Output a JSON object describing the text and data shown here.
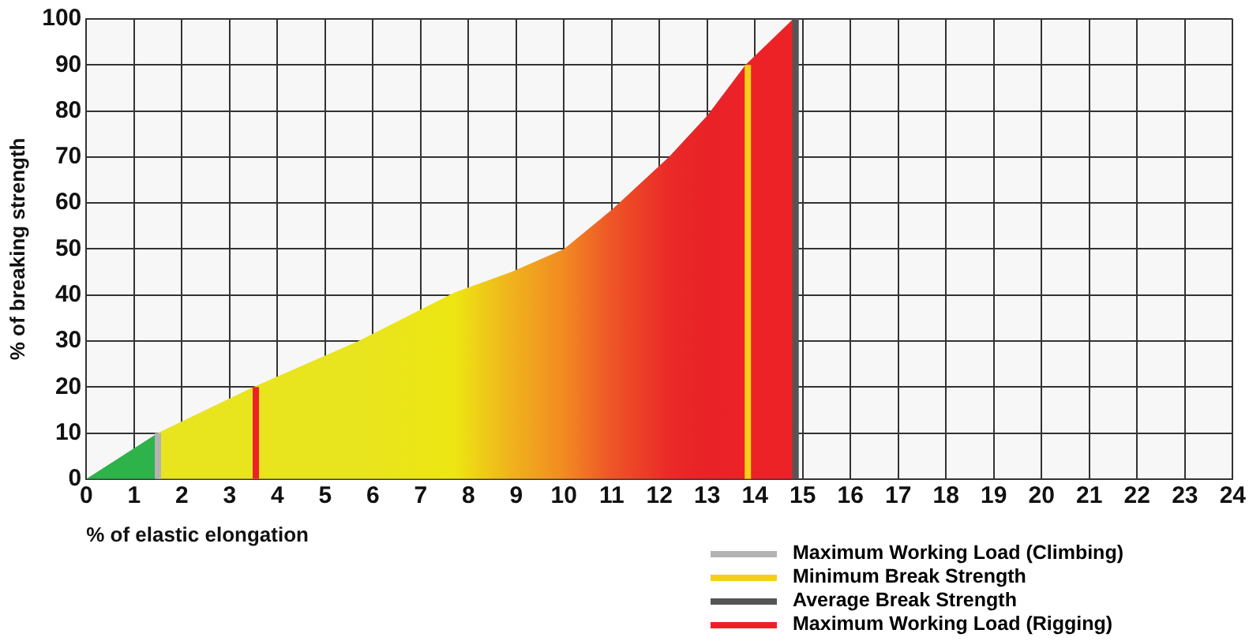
{
  "chart_data": {
    "type": "area",
    "xlabel": "% of elastic elongation",
    "ylabel": "% of breaking strength",
    "xlim": [
      0,
      24
    ],
    "xticks": [
      0,
      1,
      2,
      3,
      4,
      5,
      6,
      7,
      8,
      9,
      10,
      11,
      12,
      13,
      14,
      15,
      16,
      17,
      18,
      19,
      20,
      21,
      22,
      23,
      24
    ],
    "ylim": [
      0,
      100
    ],
    "yticks": [
      0,
      10,
      20,
      30,
      40,
      50,
      60,
      70,
      80,
      90,
      100
    ],
    "grid": true,
    "legend": "bottom right",
    "series": [
      {
        "x": [
          0,
          1.5,
          1.5,
          3.5,
          5.7,
          7.7,
          8.9,
          10,
          11,
          12.2,
          13,
          13.8,
          14.8
        ],
        "values": [
          0,
          10,
          10,
          20,
          30,
          40.5,
          45,
          50,
          58.5,
          70,
          79,
          90,
          100
        ],
        "colors": [
          "#2db34a",
          "#2db34a",
          "#e8e41e",
          "#e8e41e",
          "#e8e41e",
          "#ede612",
          "#f0b21c",
          "#f28a22",
          "#ee5526",
          "#ea2a28",
          "#e92227",
          "#ec2227",
          "#ec2227"
        ]
      },
      {
        "type": "line",
        "name": "Maximum Working Load (Climbing)",
        "color": "#b3b3b3",
        "x": [
          1.5,
          1.5
        ],
        "values": [
          0,
          10
        ]
      },
      {
        "type": "line",
        "name": "Minimum Break Strength",
        "color": "#f5cf17",
        "x": [
          13.85,
          13.85
        ],
        "values": [
          0,
          90
        ]
      },
      {
        "type": "line",
        "name": "Average Break Strength",
        "color": "#555555",
        "x": [
          14.85,
          14.85
        ],
        "values": [
          0,
          100
        ]
      },
      {
        "type": "line",
        "name": "Maximum Working Load (Rigging)",
        "color": "#ec2227",
        "x": [
          3.55,
          3.55
        ],
        "values": [
          0,
          20
        ]
      }
    ]
  }
}
